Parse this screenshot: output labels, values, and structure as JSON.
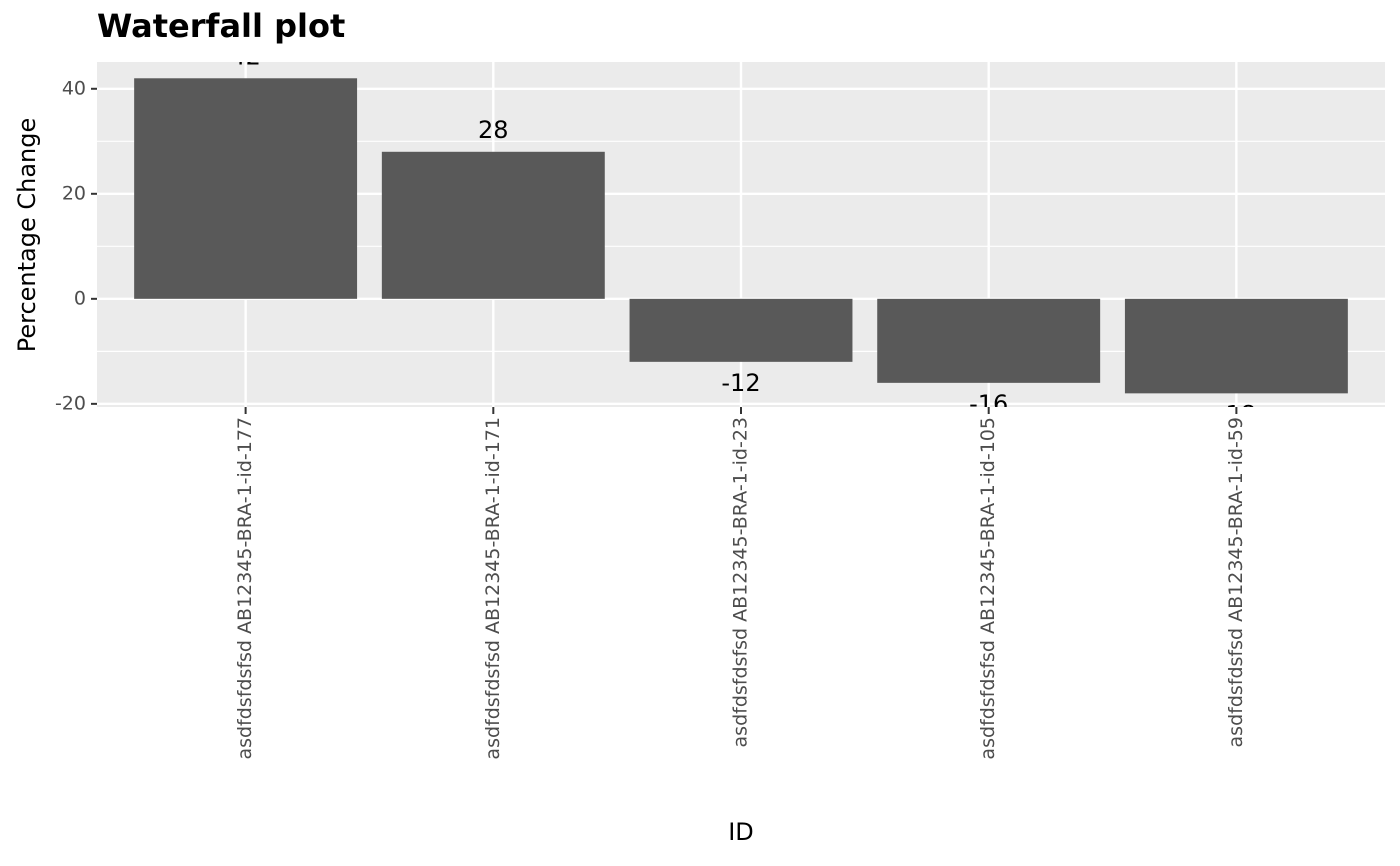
{
  "chart_data": {
    "type": "bar",
    "title": "Waterfall plot",
    "x_label": "ID",
    "y_label": "Percentage Change",
    "categories": [
      "asdfdsfdsfsd AB12345-BRA-1-id-177",
      "asdfdsfdsfsd AB12345-BRA-1-id-171",
      "asdfdsfdsfsd AB12345-BRA-1-id-23",
      "asdfdsfdsfsd AB12345-BRA-1-id-105",
      "asdfdsfdsfsd AB12345-BRA-1-id-59"
    ],
    "values": [
      42,
      28,
      -12,
      -16,
      -18
    ],
    "color": "#595959",
    "ylim": [
      -20.6,
      45.1
    ],
    "yticks": [
      -20,
      0,
      20,
      40
    ],
    "minor_yticks": [
      -10,
      10,
      30
    ],
    "grid": true
  }
}
